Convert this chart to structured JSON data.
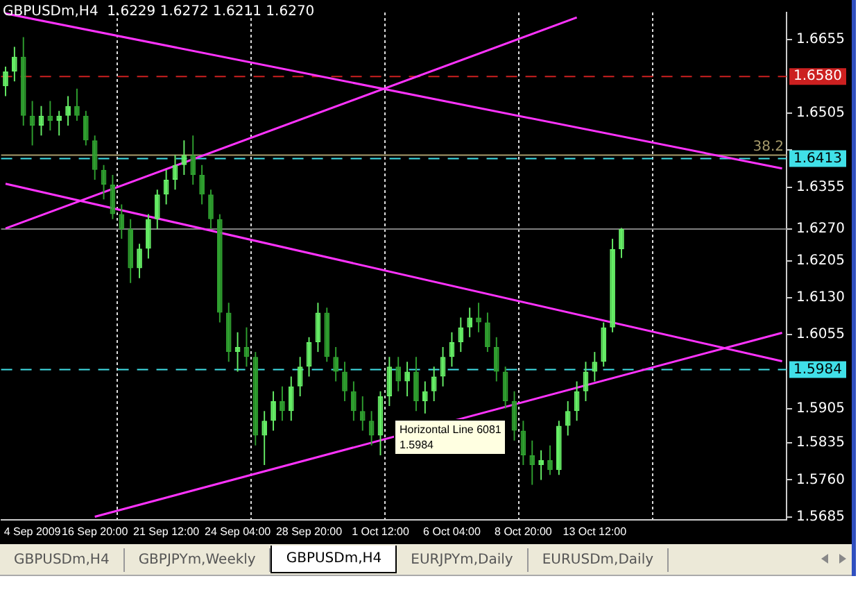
{
  "chart_data": {
    "type": "candlestick",
    "title": "GBPUSDm,H4  1.6229 1.6272 1.6211 1.6270",
    "colors": [
      "#66ee66",
      "#66ee66",
      "#2f9f2f",
      "#2f9f2f",
      "#66ee66",
      "#2f9f2f",
      "#66ee66",
      "#66ee66",
      "#2f9f2f",
      "#2f9f2f",
      "#2f9f2f",
      "#2f9f2f",
      "#2f9f2f",
      "#2f9f2f",
      "#2f9f2f",
      "#66ee66",
      "#66ee66",
      "#66ee66",
      "#66ee66",
      "#66ee66",
      "#66ee66",
      "#2f9f2f",
      "#2f9f2f",
      "#2f9f2f",
      "#2f9f2f",
      "#2f9f2f",
      "#66ee66",
      "#2f9f2f",
      "#2f9f2f",
      "#66ee66",
      "#66ee66",
      "#2f9f2f",
      "#66ee66",
      "#66ee66",
      "#66ee66",
      "#66ee66",
      "#2f9f2f",
      "#2f9f2f",
      "#2f9f2f",
      "#2f9f2f",
      "#2f9f2f",
      "#2f9f2f",
      "#66ee66",
      "#66ee66",
      "#2f9f2f",
      "#66ee66",
      "#2f9f2f",
      "#66ee66",
      "#66ee66",
      "#66ee66",
      "#66ee66",
      "#66ee66",
      "#66ee66",
      "#2f9f2f",
      "#2f9f2f",
      "#2f9f2f",
      "#2f9f2f",
      "#2f9f2f",
      "#2f9f2f",
      "#2f9f2f",
      "#66ee66",
      "#2f9f2f",
      "#66ee66",
      "#66ee66",
      "#66ee66",
      "#66ee66",
      "#66ee66",
      "#66ee66",
      "#66ee66",
      "#66ee66",
      null,
      null,
      null,
      null,
      null,
      null,
      null,
      null,
      null,
      null,
      null,
      null,
      null,
      null,
      null,
      null,
      null,
      null
    ],
    "categories": [
      null,
      null,
      null,
      "4 Sep 2009",
      null,
      null,
      null,
      null,
      null,
      null,
      "16 Sep 20:00",
      null,
      null,
      null,
      null,
      null,
      null,
      null,
      "21 Sep 12:00",
      null,
      null,
      null,
      null,
      null,
      null,
      null,
      "24 Sep 04:00",
      null,
      null,
      null,
      null,
      null,
      null,
      null,
      "28 Sep 20:00",
      null,
      null,
      null,
      null,
      null,
      null,
      null,
      "1 Oct 12:00",
      null,
      null,
      null,
      null,
      null,
      null,
      null,
      "6 Oct 04:00",
      null,
      null,
      null,
      null,
      null,
      null,
      null,
      "8 Oct 20:00",
      null,
      null,
      null,
      null,
      null,
      null,
      null,
      "13 Oct 12:00",
      null,
      null,
      null,
      null,
      null,
      null,
      null,
      null,
      null,
      null,
      null,
      null,
      null,
      null,
      null,
      null,
      null,
      null,
      null,
      null,
      null
    ],
    "ohlc": [
      [
        1.656,
        1.66,
        1.654,
        1.659
      ],
      [
        1.659,
        1.664,
        1.657,
        1.662
      ],
      [
        1.662,
        1.666,
        1.648,
        1.65
      ],
      [
        1.65,
        1.653,
        1.644,
        1.648
      ],
      [
        1.648,
        1.652,
        1.646,
        1.65
      ],
      [
        1.65,
        1.653,
        1.647,
        1.649
      ],
      [
        1.649,
        1.651,
        1.646,
        1.65
      ],
      [
        1.65,
        1.654,
        1.648,
        1.652
      ],
      [
        1.652,
        1.6555,
        1.649,
        1.65
      ],
      [
        1.65,
        1.651,
        1.644,
        1.645
      ],
      [
        1.645,
        1.646,
        1.637,
        1.639
      ],
      [
        1.639,
        1.64,
        1.633,
        1.636
      ],
      [
        1.636,
        1.638,
        1.629,
        1.63
      ],
      [
        1.63,
        1.632,
        1.625,
        1.627
      ],
      [
        1.627,
        1.629,
        1.616,
        1.619
      ],
      [
        1.619,
        1.624,
        1.617,
        1.623
      ],
      [
        1.623,
        1.63,
        1.621,
        1.629
      ],
      [
        1.629,
        1.635,
        1.627,
        1.634
      ],
      [
        1.634,
        1.639,
        1.632,
        1.637
      ],
      [
        1.637,
        1.642,
        1.635,
        1.64
      ],
      [
        1.64,
        1.645,
        1.638,
        1.642
      ],
      [
        1.642,
        1.646,
        1.636,
        1.638
      ],
      [
        1.638,
        1.64,
        1.632,
        1.634
      ],
      [
        1.634,
        1.635,
        1.627,
        1.629
      ],
      [
        1.629,
        1.63,
        1.608,
        1.61
      ],
      [
        1.61,
        1.612,
        1.6,
        1.602
      ],
      [
        1.602,
        1.606,
        1.598,
        1.603
      ],
      [
        1.603,
        1.607,
        1.599,
        1.601
      ],
      [
        1.601,
        1.602,
        1.583,
        1.585
      ],
      [
        1.585,
        1.59,
        1.579,
        1.588
      ],
      [
        1.588,
        1.594,
        1.586,
        1.592
      ],
      [
        1.592,
        1.595,
        1.588,
        1.59
      ],
      [
        1.59,
        1.597,
        1.588,
        1.595
      ],
      [
        1.595,
        1.601,
        1.593,
        1.599
      ],
      [
        1.599,
        1.605,
        1.597,
        1.604
      ],
      [
        1.604,
        1.612,
        1.602,
        1.61
      ],
      [
        1.61,
        1.611,
        1.6,
        1.601
      ],
      [
        1.601,
        1.603,
        1.596,
        1.598
      ],
      [
        1.598,
        1.6,
        1.592,
        1.594
      ],
      [
        1.594,
        1.596,
        1.588,
        1.59
      ],
      [
        1.59,
        1.593,
        1.586,
        1.588
      ],
      [
        1.588,
        1.59,
        1.583,
        1.585
      ],
      [
        1.585,
        1.594,
        1.581,
        1.593
      ],
      [
        1.593,
        1.601,
        1.591,
        1.599
      ],
      [
        1.599,
        1.601,
        1.594,
        1.596
      ],
      [
        1.596,
        1.6,
        1.593,
        1.598
      ],
      [
        1.598,
        1.601,
        1.59,
        1.592
      ],
      [
        1.592,
        1.596,
        1.5895,
        1.594
      ],
      [
        1.594,
        1.599,
        1.592,
        1.597
      ],
      [
        1.597,
        1.603,
        1.595,
        1.601
      ],
      [
        1.601,
        1.606,
        1.599,
        1.604
      ],
      [
        1.604,
        1.609,
        1.602,
        1.607
      ],
      [
        1.607,
        1.611,
        1.605,
        1.609
      ],
      [
        1.609,
        1.612,
        1.606,
        1.608
      ],
      [
        1.608,
        1.61,
        1.602,
        1.603
      ],
      [
        1.603,
        1.605,
        1.596,
        1.598
      ],
      [
        1.598,
        1.599,
        1.5905,
        1.592
      ],
      [
        1.592,
        1.594,
        1.584,
        1.586
      ],
      [
        1.586,
        1.588,
        1.579,
        1.581
      ],
      [
        1.581,
        1.584,
        1.575,
        1.579
      ],
      [
        1.579,
        1.582,
        1.576,
        1.58
      ],
      [
        1.58,
        1.583,
        1.577,
        1.578
      ],
      [
        1.578,
        1.588,
        1.577,
        1.587
      ],
      [
        1.587,
        1.592,
        1.585,
        1.59
      ],
      [
        1.59,
        1.596,
        1.588,
        1.594
      ],
      [
        1.594,
        1.6,
        1.592,
        1.598
      ],
      [
        1.598,
        1.602,
        1.596,
        1.6
      ],
      [
        1.6,
        1.608,
        1.599,
        1.607
      ],
      [
        1.607,
        1.625,
        1.606,
        1.6229
      ],
      [
        1.6229,
        1.6272,
        1.6211,
        1.627
      ],
      null,
      null,
      null,
      null,
      null,
      null,
      null,
      null,
      null,
      null,
      null,
      null,
      null,
      null,
      null,
      null,
      null,
      null
    ],
    "series": [
      {
        "type": "line",
        "color": "#ff33ff",
        "values": [
          1.6708,
          null,
          null,
          null,
          null,
          null,
          null,
          null,
          null,
          null,
          null,
          null,
          null,
          null,
          null,
          null,
          null,
          null,
          null,
          null,
          null,
          null,
          null,
          null,
          null,
          null,
          null,
          null,
          null,
          null,
          null,
          null,
          null,
          null,
          null,
          null,
          null,
          null,
          null,
          null,
          null,
          null,
          null,
          null,
          null,
          null,
          null,
          null,
          null,
          null,
          null,
          null,
          null,
          null,
          null,
          null,
          null,
          null,
          null,
          null,
          null,
          null,
          null,
          null,
          null,
          null,
          null,
          null,
          null,
          null,
          null,
          null,
          null,
          null,
          null,
          null,
          null,
          null,
          null,
          null,
          null,
          null,
          null,
          null,
          null,
          null,
          null,
          1.6393
        ]
      },
      {
        "type": "line",
        "color": "#ff33ff",
        "values": [
          1.6271,
          null,
          null,
          null,
          null,
          null,
          null,
          null,
          null,
          null,
          null,
          null,
          null,
          null,
          null,
          null,
          null,
          null,
          null,
          null,
          null,
          null,
          null,
          null,
          null,
          null,
          null,
          null,
          null,
          null,
          null,
          null,
          null,
          null,
          null,
          null,
          null,
          null,
          null,
          null,
          null,
          null,
          null,
          null,
          null,
          null,
          null,
          null,
          null,
          null,
          null,
          null,
          null,
          null,
          null,
          null,
          null,
          null,
          null,
          null,
          null,
          null,
          null,
          null,
          1.67,
          null,
          null,
          null,
          null,
          null,
          null,
          null,
          null,
          null,
          null,
          null,
          null,
          null,
          null,
          null,
          null,
          null,
          null,
          null,
          null,
          null,
          null,
          null
        ]
      },
      {
        "type": "line",
        "color": "#ff33ff",
        "values": [
          1.6362,
          null,
          null,
          null,
          null,
          null,
          null,
          null,
          null,
          null,
          null,
          null,
          null,
          null,
          null,
          null,
          null,
          null,
          null,
          null,
          null,
          null,
          null,
          null,
          null,
          null,
          null,
          null,
          null,
          null,
          null,
          null,
          null,
          null,
          null,
          null,
          null,
          null,
          null,
          null,
          null,
          null,
          null,
          null,
          null,
          null,
          null,
          null,
          null,
          null,
          null,
          null,
          null,
          null,
          null,
          null,
          null,
          null,
          null,
          null,
          null,
          null,
          null,
          null,
          null,
          null,
          null,
          null,
          null,
          null,
          null,
          null,
          null,
          null,
          null,
          null,
          null,
          null,
          null,
          null,
          null,
          null,
          null,
          null,
          null,
          null,
          null,
          1.6001
        ]
      },
      {
        "type": "line",
        "color": "#ff33ff",
        "values": [
          null,
          null,
          null,
          null,
          null,
          null,
          null,
          null,
          null,
          null,
          1.5685,
          null,
          null,
          null,
          null,
          null,
          null,
          null,
          null,
          null,
          null,
          null,
          null,
          null,
          null,
          null,
          null,
          null,
          null,
          null,
          null,
          null,
          null,
          null,
          null,
          null,
          null,
          null,
          null,
          null,
          null,
          null,
          null,
          null,
          null,
          null,
          null,
          null,
          null,
          null,
          null,
          null,
          null,
          null,
          null,
          null,
          null,
          null,
          null,
          null,
          null,
          null,
          null,
          null,
          null,
          null,
          null,
          null,
          null,
          null,
          null,
          null,
          null,
          null,
          null,
          null,
          null,
          null,
          null,
          null,
          null,
          null,
          null,
          null,
          null,
          null,
          null,
          1.6059
        ]
      }
    ],
    "ylim": [
      1.5679,
      1.671
    ],
    "yticks": [
      1.6655,
      1.6505,
      {
        "value": 1.643,
        "label": null
      },
      1.6355,
      {
        "value": 1.627,
        "label": "1.6270"
      },
      1.6205,
      {
        "value": 1.613,
        "label": "1.6130"
      },
      1.6055,
      1.5905,
      1.5835,
      {
        "value": 1.576,
        "label": "1.5760"
      },
      1.5685
    ],
    "ref_lines": [
      {
        "axis": "y",
        "value": 1.658,
        "label": "1.6580",
        "color": "#cc2020",
        "line_style": "dashed"
      },
      {
        "axis": "y",
        "value": 1.642,
        "label": null,
        "color": "#a89c6c",
        "line_style": "solid"
      },
      {
        "axis": "y",
        "value": 1.6413,
        "label": "1.6413",
        "color": "#40e0e8",
        "line_style": "dashed"
      },
      {
        "axis": "y",
        "value": 1.627,
        "label": null,
        "color": "#808080",
        "line_style": "solid"
      },
      {
        "axis": "y",
        "value": 1.5984,
        "label": "1.5984",
        "color": "#40e0e8",
        "line_style": "dashed"
      }
    ],
    "annotations": [
      "Horizontal Line 6081\n1.5984",
      {
        "text": "38.2",
        "y": 1.642
      },
      "GBPUSDm,H4",
      "GBPJPYm,Weekly",
      "GBPUSDm,H4",
      "EURJPYm,Daily",
      "EURUSDm,Daily"
    ],
    "grid": "x"
  }
}
